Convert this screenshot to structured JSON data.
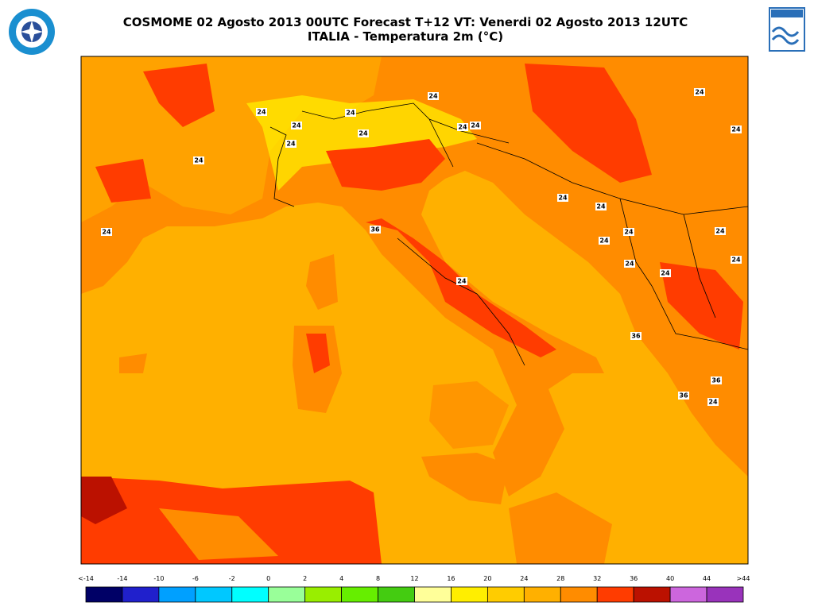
{
  "header": {
    "title_line1": "COSMOME 02 Agosto 2013 00UTC Forecast T+12 VT: Venerdi 02 Agosto 2013 12UTC",
    "title_line2": "ITALIA - Temperatura 2m (°C)"
  },
  "map": {
    "contour_labels": [
      "24",
      "24",
      "24",
      "24",
      "24",
      "24",
      "24",
      "24",
      "24",
      "24",
      "24",
      "24",
      "24",
      "24",
      "24",
      "24",
      "24",
      "24",
      "24",
      "24",
      "36",
      "36",
      "36",
      "36",
      "24",
      "24"
    ]
  },
  "colorbar": {
    "labels": [
      "<-14",
      "-14",
      "-10",
      "-6",
      "-2",
      "0",
      "2",
      "4",
      "8",
      "12",
      "16",
      "20",
      "24",
      "28",
      "32",
      "36",
      "40",
      "44",
      ">44"
    ],
    "colors": [
      "#000066",
      "#2020cc",
      "#00a0ff",
      "#00c8ff",
      "#00ffff",
      "#99ff99",
      "#99ee00",
      "#66ee00",
      "#44cc11",
      "#ffff99",
      "#ffee00",
      "#ffcc00",
      "#ffb000",
      "#ff8c00",
      "#ff3c00",
      "#bb1100",
      "#cc66dd",
      "#9933bb"
    ]
  }
}
